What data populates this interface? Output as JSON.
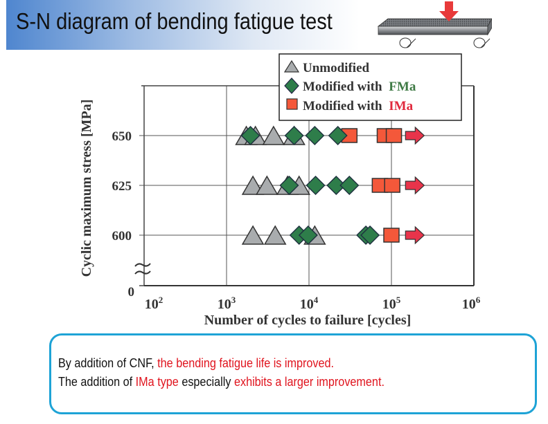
{
  "page": {
    "title": "S-N diagram of bending fatigue test",
    "illustration": "three-point-bending-beam-with-load-arrow"
  },
  "colors": {
    "unmodified": "#a9acae",
    "fma": "#2e7d4a",
    "ima": "#f4583a",
    "runout_arrow": "#e8344b",
    "fma_label": "#3f7a45",
    "ima_label": "#e0283c",
    "note_border": "#1ea3d6",
    "note_red": "#e0141e"
  },
  "chart_data": {
    "type": "scatter",
    "title": "",
    "xlabel": "Number of cycles to failure [cycles]",
    "ylabel": "Cyclic maximum stress [MPa]",
    "x_scale": "log10",
    "xlim_log10": [
      2,
      6
    ],
    "x_ticks": [
      {
        "base": "10",
        "exp": "2"
      },
      {
        "base": "10",
        "exp": "3"
      },
      {
        "base": "10",
        "exp": "4"
      },
      {
        "base": "10",
        "exp": "5"
      },
      {
        "base": "10",
        "exp": "6"
      }
    ],
    "y_ticks": [
      "650",
      "625",
      "600",
      "0"
    ],
    "y_levels": [
      650,
      625,
      600
    ],
    "y_axis_break": true,
    "grid": true,
    "legend_position": "top-right",
    "legend": [
      {
        "marker": "triangle",
        "label": "Unmodified",
        "highlight": ""
      },
      {
        "marker": "diamond",
        "label": "Modified with ",
        "highlight": "FMa"
      },
      {
        "marker": "square",
        "label": "Modified with ",
        "highlight": "IMa"
      }
    ],
    "series": [
      {
        "name": "Unmodified",
        "marker": "triangle",
        "points": [
          {
            "stress": 650,
            "log10_cycles": 3.24
          },
          {
            "stress": 650,
            "log10_cycles": 3.35
          },
          {
            "stress": 650,
            "log10_cycles": 3.57
          },
          {
            "stress": 650,
            "log10_cycles": 3.82
          },
          {
            "stress": 625,
            "log10_cycles": 3.32
          },
          {
            "stress": 625,
            "log10_cycles": 3.49
          },
          {
            "stress": 625,
            "log10_cycles": 3.74
          },
          {
            "stress": 625,
            "log10_cycles": 3.88
          },
          {
            "stress": 600,
            "log10_cycles": 3.32
          },
          {
            "stress": 600,
            "log10_cycles": 3.59
          },
          {
            "stress": 600,
            "log10_cycles": 4.07
          }
        ]
      },
      {
        "name": "Modified with FMa",
        "marker": "diamond",
        "points": [
          {
            "stress": 650,
            "log10_cycles": 3.29
          },
          {
            "stress": 650,
            "log10_cycles": 3.82
          },
          {
            "stress": 650,
            "log10_cycles": 4.07
          },
          {
            "stress": 650,
            "log10_cycles": 4.35
          },
          {
            "stress": 625,
            "log10_cycles": 3.76
          },
          {
            "stress": 625,
            "log10_cycles": 4.08
          },
          {
            "stress": 625,
            "log10_cycles": 4.33
          },
          {
            "stress": 625,
            "log10_cycles": 4.49
          },
          {
            "stress": 600,
            "log10_cycles": 3.88
          },
          {
            "stress": 600,
            "log10_cycles": 3.99
          },
          {
            "stress": 600,
            "log10_cycles": 4.69
          },
          {
            "stress": 600,
            "log10_cycles": 4.74
          }
        ]
      },
      {
        "name": "Modified with IMa",
        "marker": "square",
        "points": [
          {
            "stress": 650,
            "log10_cycles": 4.49
          },
          {
            "stress": 650,
            "log10_cycles": 4.92
          },
          {
            "stress": 650,
            "log10_cycles": 5.03
          },
          {
            "stress": 625,
            "log10_cycles": 4.86
          },
          {
            "stress": 625,
            "log10_cycles": 5.01
          },
          {
            "stress": 600,
            "log10_cycles": 5.0
          }
        ]
      }
    ],
    "runout_arrows": [
      {
        "stress": 650,
        "log10_cycles": 5.28
      },
      {
        "stress": 625,
        "log10_cycles": 5.28
      },
      {
        "stress": 600,
        "log10_cycles": 5.28
      }
    ]
  },
  "note": {
    "line1": [
      {
        "text": "By addition of CNF, ",
        "red": false
      },
      {
        "text": "the bending fatigue life is improved.",
        "red": true
      }
    ],
    "line2": [
      {
        "text": "The addition of ",
        "red": false
      },
      {
        "text": "IMa type",
        "red": true
      },
      {
        "text": " especially ",
        "red": false
      },
      {
        "text": "exhibits a larger improvement.",
        "red": true
      }
    ]
  }
}
